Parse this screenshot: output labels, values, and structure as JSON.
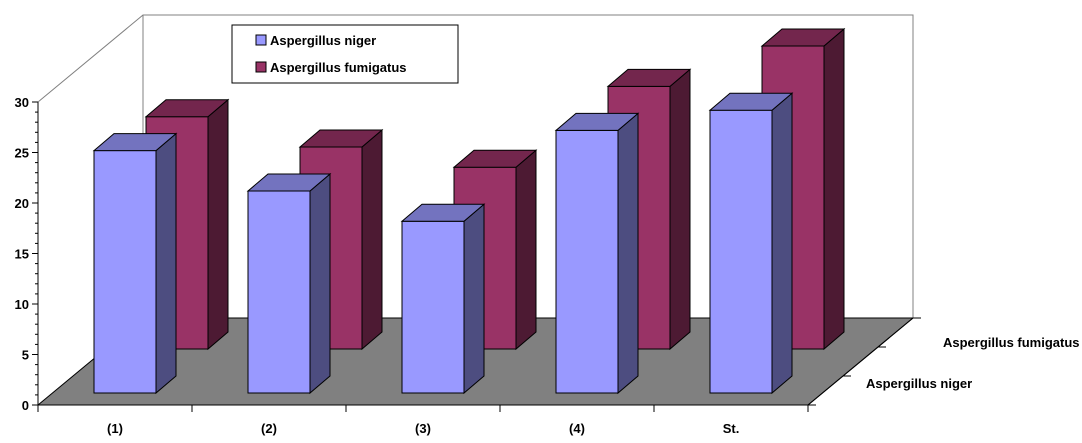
{
  "chart_data": {
    "type": "bar",
    "title": "",
    "xlabel": "",
    "ylabel": "",
    "categories": [
      "(1)",
      "(2)",
      "(3)",
      "(4)",
      "St."
    ],
    "ylim": [
      0,
      30
    ],
    "yticks": [
      "0",
      "5",
      "10",
      "15",
      "20",
      "25",
      "30"
    ],
    "series": [
      {
        "name": "Aspergillus niger",
        "values": [
          24,
          20,
          17,
          26,
          28
        ],
        "color": "#9999ff"
      },
      {
        "name": "Aspergillus fumigatus",
        "values": [
          23,
          20,
          18,
          26,
          30
        ],
        "color": "#993366"
      }
    ],
    "depth_labels": [
      "Aspergillus fumigatus",
      "Aspergillus niger"
    ],
    "legend": {
      "position": "top-left",
      "items": [
        "Aspergillus niger",
        "Aspergillus fumigatus"
      ]
    },
    "floor_color": "#808080",
    "style": "3d-clustered-depth"
  }
}
